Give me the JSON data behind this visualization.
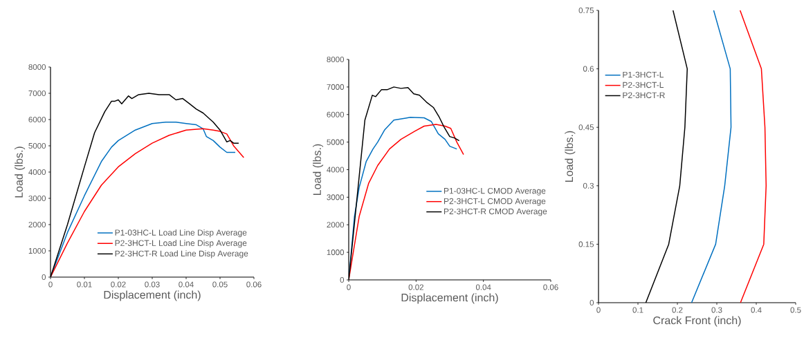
{
  "chart_data": [
    {
      "type": "line",
      "xlabel": "Displacement (inch)",
      "ylabel": "Load (lbs.)",
      "xlim": [
        0,
        0.06
      ],
      "ylim": [
        0,
        8000
      ],
      "xticks": [
        0,
        0.01,
        0.02,
        0.03,
        0.04,
        0.05,
        0.06
      ],
      "yticks": [
        0,
        1000,
        2000,
        3000,
        4000,
        5000,
        6000,
        7000,
        8000
      ],
      "legend": "bottom right",
      "series": [
        {
          "name": "P1-03HC-L Load Line Disp Average",
          "color": "#0070c0",
          "x": [
            0,
            0.005,
            0.01,
            0.015,
            0.018,
            0.02,
            0.025,
            0.03,
            0.034,
            0.037,
            0.04,
            0.043,
            0.045,
            0.046,
            0.048,
            0.05,
            0.052,
            0.0545
          ],
          "values": [
            0,
            1700,
            3100,
            4400,
            4950,
            5200,
            5600,
            5850,
            5900,
            5900,
            5850,
            5800,
            5650,
            5350,
            5200,
            4950,
            4750,
            4750
          ]
        },
        {
          "name": "P2-3HCT-L Load Line Disp Average",
          "color": "#ff0000",
          "x": [
            0,
            0.005,
            0.01,
            0.015,
            0.02,
            0.025,
            0.03,
            0.035,
            0.04,
            0.045,
            0.048,
            0.05,
            0.052,
            0.054,
            0.057
          ],
          "values": [
            0,
            1300,
            2500,
            3500,
            4200,
            4700,
            5100,
            5400,
            5600,
            5650,
            5600,
            5550,
            5450,
            5000,
            4550
          ]
        },
        {
          "name": "P2-3HCT-R Load Line Disp Average",
          "color": "#000000",
          "x": [
            0,
            0.005,
            0.01,
            0.013,
            0.016,
            0.018,
            0.019,
            0.02,
            0.021,
            0.023,
            0.024,
            0.026,
            0.029,
            0.032,
            0.035,
            0.037,
            0.039,
            0.041,
            0.043,
            0.045,
            0.048,
            0.05,
            0.052,
            0.053,
            0.054,
            0.0555
          ],
          "values": [
            0,
            2000,
            4200,
            5500,
            6300,
            6700,
            6700,
            6750,
            6600,
            6900,
            6800,
            6950,
            7000,
            6950,
            6950,
            6750,
            6800,
            6600,
            6400,
            6250,
            5900,
            5600,
            5150,
            5200,
            5100,
            5100
          ]
        }
      ]
    },
    {
      "type": "line",
      "xlabel": "Displacement (inch)",
      "ylabel": "Load (lbs.)",
      "xlim": [
        0,
        0.06
      ],
      "ylim": [
        0,
        8000
      ],
      "xticks": [
        0,
        0.02,
        0.04,
        0.06
      ],
      "yticks": [
        0,
        1000,
        2000,
        3000,
        4000,
        5000,
        6000,
        7000,
        8000
      ],
      "legend": "right",
      "series": [
        {
          "name": "P1-03HC-L CMOD Average",
          "color": "#0070c0",
          "x": [
            0,
            0.0017,
            0.0031,
            0.0052,
            0.0072,
            0.0086,
            0.0107,
            0.0134,
            0.0169,
            0.0183,
            0.0224,
            0.0245,
            0.0266,
            0.0286,
            0.03,
            0.0321
          ],
          "values": [
            0,
            2300,
            3350,
            4300,
            4750,
            5000,
            5450,
            5800,
            5870,
            5900,
            5880,
            5750,
            5300,
            5100,
            4850,
            4750
          ]
        },
        {
          "name": "P2-3HCT-L CMOD Average",
          "color": "#ff0000",
          "x": [
            0,
            0.0031,
            0.0059,
            0.0086,
            0.0121,
            0.0155,
            0.0197,
            0.0224,
            0.0259,
            0.0286,
            0.0303,
            0.0321,
            0.0341
          ],
          "values": [
            0,
            2300,
            3500,
            4150,
            4750,
            5100,
            5400,
            5580,
            5640,
            5580,
            5500,
            5000,
            4550
          ]
        },
        {
          "name": "P2-3HCT-R CMOD Average",
          "color": "#000000",
          "x": [
            0,
            0.0048,
            0.007,
            0.008,
            0.0097,
            0.0114,
            0.0134,
            0.0155,
            0.0176,
            0.0193,
            0.021,
            0.0231,
            0.0252,
            0.0269,
            0.0283,
            0.03,
            0.0314,
            0.0328
          ],
          "values": [
            0,
            5800,
            6700,
            6650,
            6900,
            6900,
            7000,
            6950,
            6980,
            6750,
            6700,
            6450,
            6250,
            5900,
            5550,
            5200,
            5150,
            5050
          ]
        }
      ]
    },
    {
      "type": "line",
      "xlabel": "Crack Front (inch)",
      "ylabel": "Load (lbs.)",
      "xlim": [
        0,
        0.5
      ],
      "ylim": [
        0,
        0.75
      ],
      "xticks": [
        0,
        0.1,
        0.2,
        0.3,
        0.4,
        0.5
      ],
      "yticks": [
        0,
        0.15,
        0.3,
        0.45,
        0.6,
        0.75
      ],
      "legend": "top left",
      "series": [
        {
          "name": "P1-3HCT-L",
          "color": "#0070c0",
          "x": [
            0.236,
            0.297,
            0.32,
            0.336,
            0.334,
            0.292
          ],
          "values": [
            0,
            0.15,
            0.3,
            0.45,
            0.6,
            0.75
          ]
        },
        {
          "name": "P2-3HCT-L",
          "color": "#ff0000",
          "x": [
            0.36,
            0.419,
            0.425,
            0.422,
            0.413,
            0.359
          ],
          "values": [
            0,
            0.15,
            0.3,
            0.45,
            0.6,
            0.75
          ]
        },
        {
          "name": "P2-3HCT-R",
          "color": "#000000",
          "x": [
            0.12,
            0.178,
            0.206,
            0.219,
            0.225,
            0.189
          ],
          "values": [
            0,
            0.15,
            0.3,
            0.45,
            0.6,
            0.75
          ]
        }
      ]
    }
  ]
}
